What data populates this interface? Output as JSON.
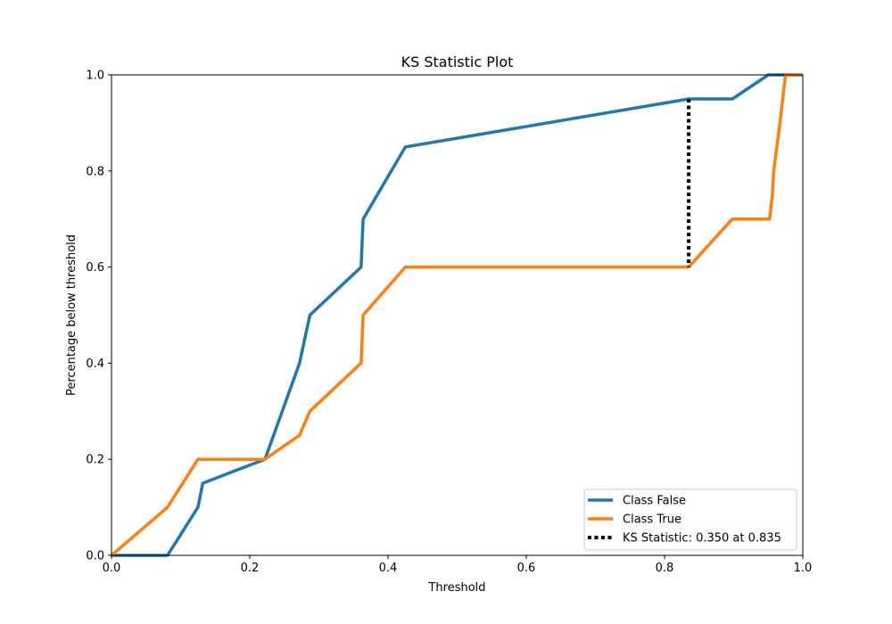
{
  "chart_data": {
    "type": "line",
    "title": "KS Statistic Plot",
    "xlabel": "Threshold",
    "ylabel": "Percentage below threshold",
    "xlim": [
      0,
      1
    ],
    "ylim": [
      0,
      1
    ],
    "xticks": [
      "0.0",
      "0.2",
      "0.4",
      "0.6",
      "0.8",
      "1.0"
    ],
    "yticks": [
      "0.0",
      "0.2",
      "0.4",
      "0.6",
      "0.8",
      "1.0"
    ],
    "grid": false,
    "legend_position": "lower-right",
    "series": [
      {
        "name": "Class False",
        "color": "#1f77b4",
        "x": [
          0.0,
          0.081,
          0.125,
          0.132,
          0.222,
          0.272,
          0.287,
          0.361,
          0.364,
          0.425,
          0.835,
          0.898,
          0.95,
          1.0
        ],
        "y": [
          0.0,
          0.0,
          0.1,
          0.15,
          0.2,
          0.4,
          0.5,
          0.6,
          0.7,
          0.85,
          0.95,
          0.95,
          1.0,
          1.0
        ]
      },
      {
        "name": "Class True",
        "color": "#ff7f0e",
        "x": [
          0.0,
          0.081,
          0.125,
          0.222,
          0.272,
          0.287,
          0.361,
          0.364,
          0.425,
          0.835,
          0.898,
          0.952,
          0.956,
          0.958,
          0.967,
          0.975,
          1.0
        ],
        "y": [
          0.0,
          0.1,
          0.2,
          0.2,
          0.25,
          0.3,
          0.4,
          0.5,
          0.6,
          0.6,
          0.7,
          0.7,
          0.75,
          0.8,
          0.9,
          1.0,
          1.0
        ]
      }
    ],
    "ks_statistic": {
      "label": "KS Statistic: 0.350 at 0.835",
      "x": 0.835,
      "y_low": 0.6,
      "y_high": 0.95,
      "color": "#000000"
    }
  }
}
